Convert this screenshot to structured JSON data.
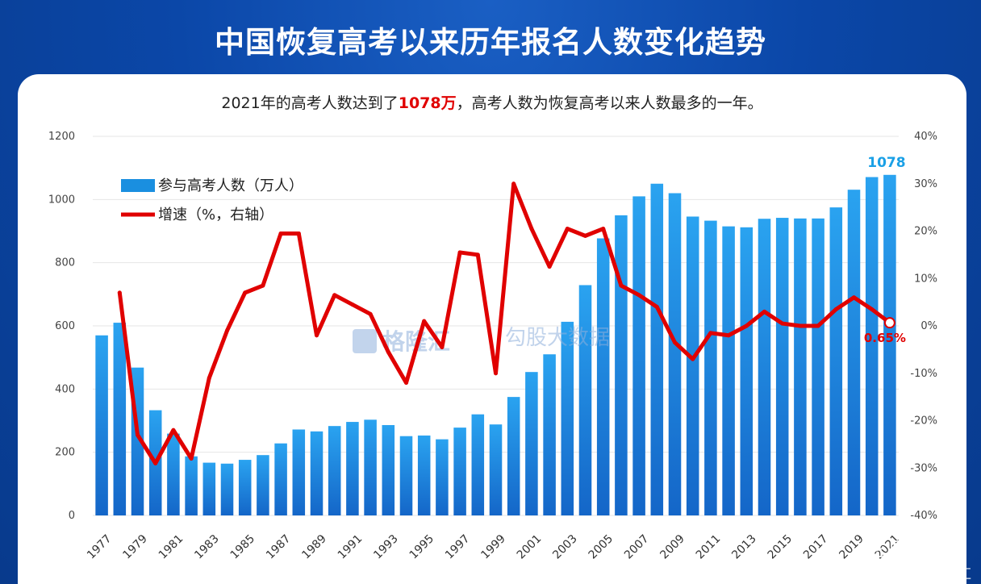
{
  "title": "中国恢复高考以来历年报名人数变化趋势",
  "subtitle": {
    "prefix": "2021年的高考人数达到了",
    "highlight": "1078万",
    "suffix": "，高考人数为恢复高考以来人数最多的一年。"
  },
  "watermarks": {
    "center_left": "格隆汇",
    "center_right": "勾股大数据",
    "bottom_right_1": "老虎社区",
    "bottom_right_2": "@格隆汇"
  },
  "colors": {
    "bar": "#1a8fe0",
    "line": "#e00000",
    "title_bg": "#0b47a8",
    "highlight": "#e00000",
    "last_label": "#1aa0e6"
  },
  "chart_data": {
    "type": "bar",
    "x": [
      1977,
      1978,
      1979,
      1980,
      1981,
      1982,
      1983,
      1984,
      1985,
      1986,
      1987,
      1988,
      1989,
      1990,
      1991,
      1992,
      1993,
      1994,
      1995,
      1996,
      1997,
      1998,
      1999,
      2000,
      2001,
      2002,
      2003,
      2004,
      2005,
      2006,
      2007,
      2008,
      2009,
      2010,
      2011,
      2012,
      2013,
      2014,
      2015,
      2016,
      2017,
      2018,
      2019,
      2020,
      2021
    ],
    "x_tick_labels": [
      "1977",
      "1979",
      "1981",
      "1983",
      "1985",
      "1987",
      "1989",
      "1991",
      "1993",
      "1995",
      "1997",
      "1999",
      "2001",
      "2003",
      "2005",
      "2007",
      "2009",
      "2011",
      "2013",
      "2015",
      "2017",
      "2019",
      "2021"
    ],
    "series": [
      {
        "name": "参与高考人数（万人）",
        "axis": "left",
        "type": "bar",
        "values": [
          570,
          610,
          468,
          333,
          259,
          187,
          167,
          164,
          176,
          191,
          228,
          272,
          266,
          283,
          296,
          303,
          286,
          251,
          253,
          241,
          278,
          320,
          288,
          375,
          454,
          510,
          613,
          729,
          877,
          950,
          1010,
          1050,
          1020,
          946,
          933,
          915,
          912,
          939,
          942,
          940,
          940,
          975,
          1031,
          1071,
          1078
        ]
      },
      {
        "name": "增速（%，右轴）",
        "axis": "right",
        "type": "line",
        "values": [
          null,
          7,
          -23,
          -29,
          -22,
          -28,
          -11,
          -1,
          7,
          8.5,
          19.5,
          19.5,
          -2,
          6.5,
          4.5,
          2.5,
          -5.5,
          -12,
          1,
          -4.5,
          15.5,
          15,
          -10,
          30,
          20.5,
          12.5,
          20.5,
          19,
          20.5,
          8.5,
          6.5,
          4,
          -3.5,
          -7,
          -1.5,
          -2,
          0,
          3,
          0.5,
          0,
          0,
          3.5,
          6,
          3.5,
          0.65
        ]
      }
    ],
    "y_left": {
      "ylim": [
        0,
        1200
      ],
      "ticks": [
        "0",
        "200",
        "400",
        "600",
        "800",
        "1000",
        "1200"
      ]
    },
    "y_right": {
      "ylim": [
        -40,
        40
      ],
      "ticks": [
        "-40%",
        "-30%",
        "-20%",
        "-10%",
        "0%",
        "10%",
        "20%",
        "30%",
        "40%"
      ]
    },
    "annotations": {
      "last_bar_label": "1078",
      "last_line_label": "0.65%"
    },
    "legend": {
      "placement": "top-left"
    }
  }
}
